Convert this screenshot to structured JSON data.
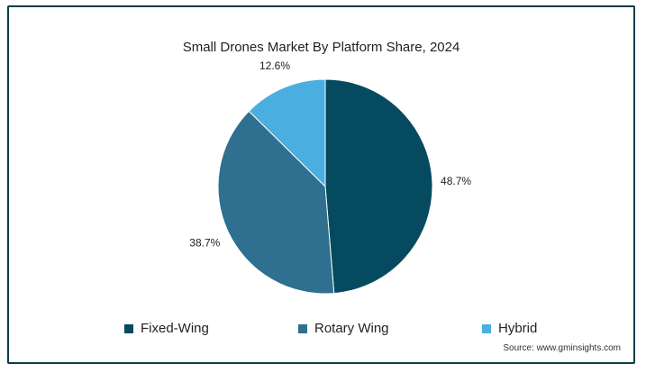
{
  "chart_data": {
    "type": "pie",
    "title": "Small Drones Market By Platform Share, 2024",
    "categories": [
      "Fixed-Wing",
      "Rotary Wing",
      "Hybrid"
    ],
    "values": [
      48.7,
      38.7,
      12.6
    ],
    "labels": [
      "48.7%",
      "38.7%",
      "12.6%"
    ],
    "colors": [
      "#054a5e",
      "#2f6f8f",
      "#4aaee0"
    ],
    "legend_position": "bottom"
  },
  "source": "Source: www.gminsights.com"
}
